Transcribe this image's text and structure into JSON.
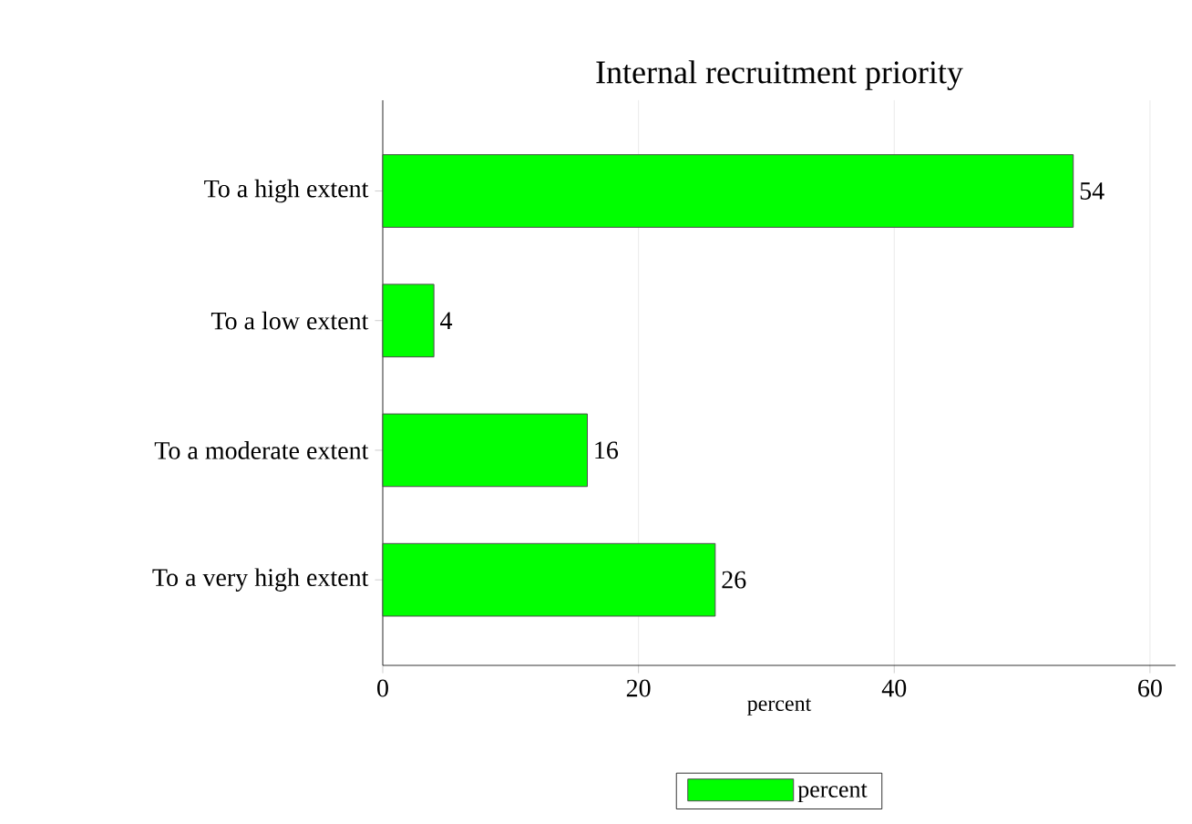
{
  "chart_data": {
    "type": "bar",
    "orientation": "horizontal",
    "title": "Internal recruitment priority",
    "xlabel": "percent",
    "categories": [
      "To a high extent",
      "To a low extent",
      "To a moderate extent",
      "To a very high extent"
    ],
    "series": [
      {
        "name": "percent",
        "color": "#00ff00",
        "values": [
          54,
          4,
          16,
          26
        ]
      }
    ],
    "xlim": [
      0,
      62
    ],
    "xticks": [
      0,
      20,
      40,
      60
    ],
    "grid": "x",
    "legend": "bottom",
    "data_labels": true
  }
}
